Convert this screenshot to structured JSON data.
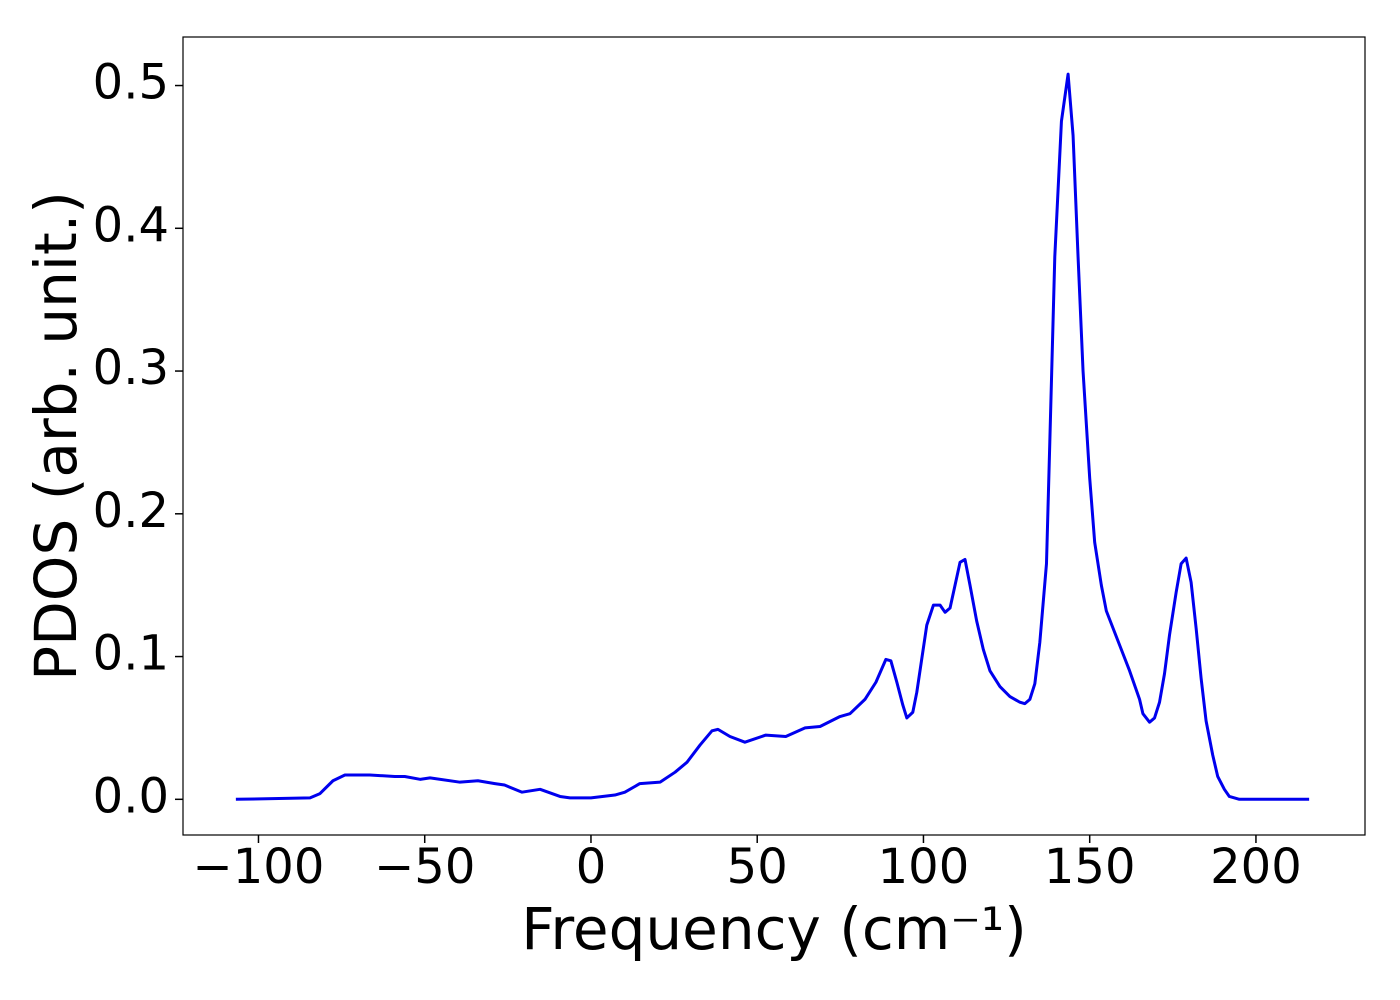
{
  "chart_data": {
    "type": "line",
    "xlabel": "Frequency (cm⁻¹)",
    "ylabel": "PDOS (arb. unit.)",
    "xlim": [
      -122.7,
      232.8
    ],
    "ylim": [
      -0.025,
      0.534
    ],
    "xticks": [
      {
        "value": -100,
        "label": "−100"
      },
      {
        "value": -50,
        "label": "−50"
      },
      0,
      50,
      100,
      150,
      200
    ],
    "yticks": [
      {
        "value": 0,
        "label": "0.0"
      },
      0.1,
      0.2,
      0.3,
      0.4,
      0.5
    ],
    "series": [
      {
        "name": "PDOS",
        "color": "#0000ee",
        "x": [
          -106.8,
          -84.5,
          -81.5,
          -77.6,
          -74,
          -66.5,
          -59,
          -56,
          -51.4,
          -48.4,
          -39.4,
          -34,
          -28.9,
          -26,
          -20.8,
          -15.3,
          -9.3,
          -6.3,
          0,
          7.2,
          10.2,
          14.7,
          20.8,
          25.3,
          28.9,
          32.8,
          36.4,
          38.2,
          41.8,
          46.3,
          52.6,
          58.6,
          64.4,
          68.9,
          74.9,
          77.9,
          82.4,
          85.7,
          88.7,
          90.2,
          92,
          93.8,
          95,
          96.8,
          98,
          101,
          103,
          105,
          106.5,
          108,
          111,
          112.5,
          114,
          116,
          118,
          120,
          123,
          126,
          129,
          130.5,
          132,
          133.5,
          135,
          137,
          138,
          139.5,
          141.5,
          143.5,
          145,
          146.5,
          148,
          150,
          151.5,
          153.5,
          155,
          157,
          159,
          162,
          165,
          166,
          168,
          169.5,
          171,
          172.5,
          174,
          176,
          177.5,
          179,
          180.5,
          182,
          183.5,
          185,
          187,
          188.5,
          190.5,
          192,
          195,
          216
        ],
        "values": [
          0,
          0.001,
          0.004,
          0.013,
          0.017,
          0.017,
          0.016,
          0.016,
          0.014,
          0.015,
          0.012,
          0.013,
          0.011,
          0.01,
          0.005,
          0.007,
          0.002,
          0.001,
          0.001,
          0.003,
          0.005,
          0.011,
          0.012,
          0.019,
          0.026,
          0.038,
          0.048,
          0.049,
          0.044,
          0.04,
          0.045,
          0.044,
          0.05,
          0.051,
          0.058,
          0.06,
          0.07,
          0.082,
          0.098,
          0.097,
          0.082,
          0.066,
          0.057,
          0.061,
          0.075,
          0.122,
          0.136,
          0.136,
          0.131,
          0.134,
          0.166,
          0.168,
          0.15,
          0.125,
          0.105,
          0.09,
          0.079,
          0.072,
          0.068,
          0.067,
          0.07,
          0.081,
          0.11,
          0.165,
          0.25,
          0.38,
          0.475,
          0.508,
          0.465,
          0.38,
          0.3,
          0.225,
          0.18,
          0.15,
          0.132,
          0.12,
          0.108,
          0.09,
          0.07,
          0.06,
          0.054,
          0.057,
          0.068,
          0.088,
          0.115,
          0.145,
          0.165,
          0.169,
          0.152,
          0.12,
          0.085,
          0.055,
          0.031,
          0.016,
          0.007,
          0.002,
          0,
          0
        ]
      }
    ]
  }
}
